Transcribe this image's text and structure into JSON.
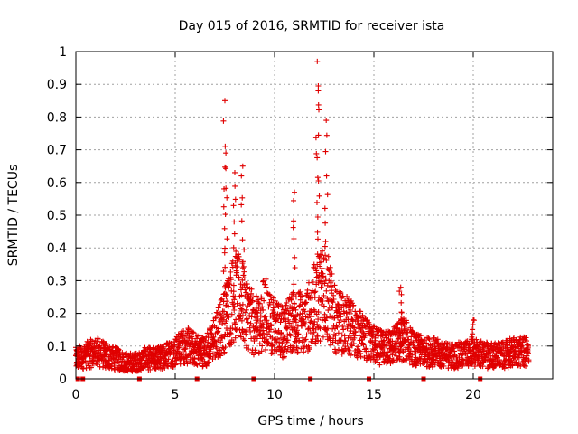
{
  "chart_data": {
    "type": "scatter",
    "title": "Day 015 of 2016, SRMTID for receiver ista",
    "xlabel": "GPS time / hours",
    "ylabel": "SRMTID / TECUs",
    "xlim": [
      0,
      24
    ],
    "ylim": [
      0,
      1
    ],
    "xticks": [
      0,
      5,
      10,
      15,
      20
    ],
    "xtick_labels": [
      "0",
      "5",
      "10",
      "15",
      "20"
    ],
    "yticks": [
      0,
      0.1,
      0.2,
      0.3,
      0.4,
      0.5,
      0.6,
      0.7,
      0.8,
      0.9,
      1
    ],
    "ytick_labels": [
      "0",
      "0.1",
      "0.2",
      "0.3",
      "0.4",
      "0.5",
      "0.6",
      "0.7",
      "0.8",
      "0.9",
      "1"
    ],
    "grid": true,
    "marker": "+",
    "color": "#e00000",
    "series": [
      {
        "name": "SRMTID",
        "envelope": {
          "x": [
            0.0,
            0.5,
            1.0,
            1.5,
            2.0,
            2.5,
            3.0,
            3.5,
            4.0,
            4.5,
            5.0,
            5.5,
            6.0,
            6.5,
            7.0,
            7.5,
            8.0,
            8.5,
            9.0,
            9.5,
            10.0,
            10.5,
            11.0,
            11.5,
            12.0,
            12.5,
            13.0,
            13.5,
            14.0,
            14.5,
            15.0,
            15.5,
            16.0,
            16.5,
            17.0,
            17.5,
            18.0,
            18.5,
            19.0,
            19.5,
            20.0,
            20.5,
            21.0,
            21.5,
            22.0,
            22.5,
            22.8
          ],
          "y": [
            0.06,
            0.07,
            0.08,
            0.07,
            0.06,
            0.05,
            0.05,
            0.06,
            0.06,
            0.07,
            0.08,
            0.1,
            0.09,
            0.08,
            0.12,
            0.18,
            0.25,
            0.22,
            0.15,
            0.2,
            0.15,
            0.14,
            0.18,
            0.16,
            0.22,
            0.28,
            0.18,
            0.16,
            0.15,
            0.12,
            0.1,
            0.09,
            0.1,
            0.12,
            0.09,
            0.08,
            0.08,
            0.07,
            0.07,
            0.07,
            0.08,
            0.07,
            0.07,
            0.07,
            0.08,
            0.08,
            0.08
          ]
        },
        "peaks": [
          {
            "x": 7.5,
            "y": 0.85
          },
          {
            "x": 7.55,
            "y": 0.69
          },
          {
            "x": 8.0,
            "y": 0.63
          },
          {
            "x": 8.4,
            "y": 0.65
          },
          {
            "x": 11.0,
            "y": 0.57
          },
          {
            "x": 12.15,
            "y": 0.97
          },
          {
            "x": 12.2,
            "y": 0.88
          },
          {
            "x": 12.6,
            "y": 0.79
          },
          {
            "x": 16.35,
            "y": 0.28
          },
          {
            "x": 20.0,
            "y": 0.18
          }
        ],
        "data_gaps_x": [
          0.1,
          0.35,
          3.2,
          6.1,
          8.95,
          11.8,
          14.75,
          17.5,
          20.35
        ]
      }
    ]
  }
}
